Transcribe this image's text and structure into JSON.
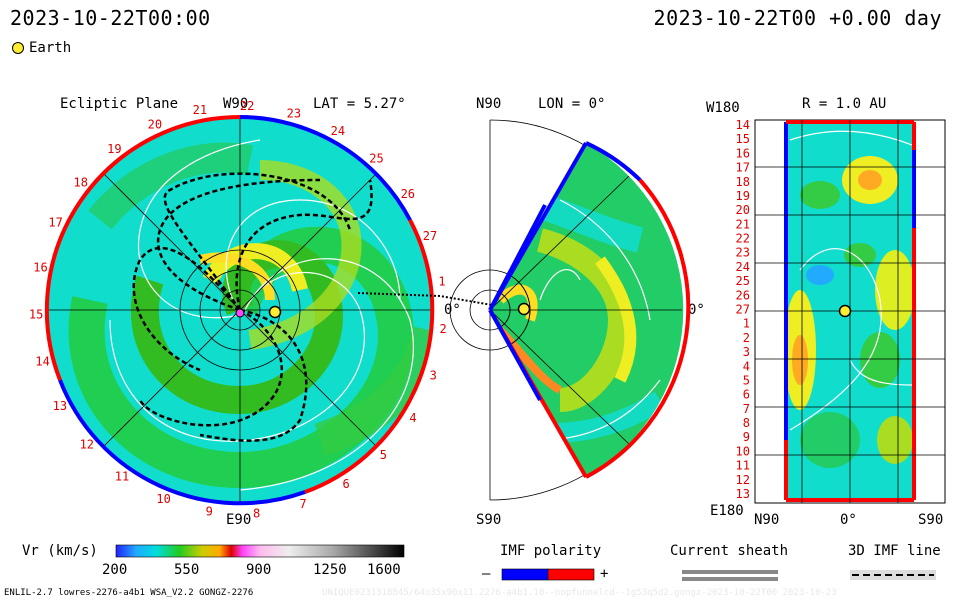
{
  "header": {
    "datetime_left": "2023-10-22T00:00",
    "datetime_right": "2023-10-22T00 +0.00 day",
    "legend_label": "Earth",
    "legend_color": "#ffee33"
  },
  "ecliptic": {
    "title": "Ecliptic Plane",
    "top_label": "W90",
    "bottom_label": "E90",
    "lat_label": "LAT = 5.27°",
    "right_label": "0°",
    "rim_numbers": [
      "1",
      "2",
      "3",
      "4",
      "5",
      "6",
      "7",
      "8",
      "9",
      "10",
      "11",
      "12",
      "13",
      "14",
      "15",
      "16",
      "17",
      "18",
      "19",
      "20",
      "21",
      "22",
      "23",
      "24",
      "25",
      "26",
      "27"
    ]
  },
  "meridional": {
    "top_label": "N90",
    "bottom_label": "S90",
    "lon_label": "LON = 0°",
    "right_label": "0°"
  },
  "radial": {
    "top_left_label": "W180",
    "bottom_left_label": "E180",
    "r_label": "R = 1.0 AU",
    "y_ticks": [
      "14",
      "15",
      "16",
      "17",
      "18",
      "19",
      "20",
      "21",
      "22",
      "23",
      "24",
      "25",
      "26",
      "27",
      "1",
      "2",
      "3",
      "4",
      "5",
      "6",
      "7",
      "8",
      "9",
      "10",
      "11",
      "12",
      "13"
    ],
    "x_left": "N90",
    "x_mid": "0°",
    "x_right": "S90"
  },
  "colorbar": {
    "label": "Vr (km/s)",
    "ticks": [
      "200",
      "550",
      "900",
      "1250",
      "1600"
    ],
    "min": 200,
    "max": 1600
  },
  "legend": {
    "imf_title": "IMF polarity",
    "imf_minus": "–",
    "imf_plus": "+",
    "imf_minus_color": "#0000ff",
    "imf_plus_color": "#ff0000",
    "sheath_title": "Current sheath",
    "imf3d_title": "3D IMF line"
  },
  "footer": {
    "model_info": "ENLIL-2.7 lowres-2276-a4b1 WSA_V2.2 GONGZ-2276",
    "watermark": "UNIQUE0231318845/64o35x90x11.2276-a4b1.10--nopfunnelcd--1g53q5d2.gongz-2023-10-22T00    2023-10-23"
  },
  "colors": {
    "field_green": "#22cc44",
    "field_cyan": "#11ddcc",
    "field_yellow": "#ddee22",
    "polarity_pos": "#ff0000",
    "polarity_neg": "#0000ff"
  }
}
